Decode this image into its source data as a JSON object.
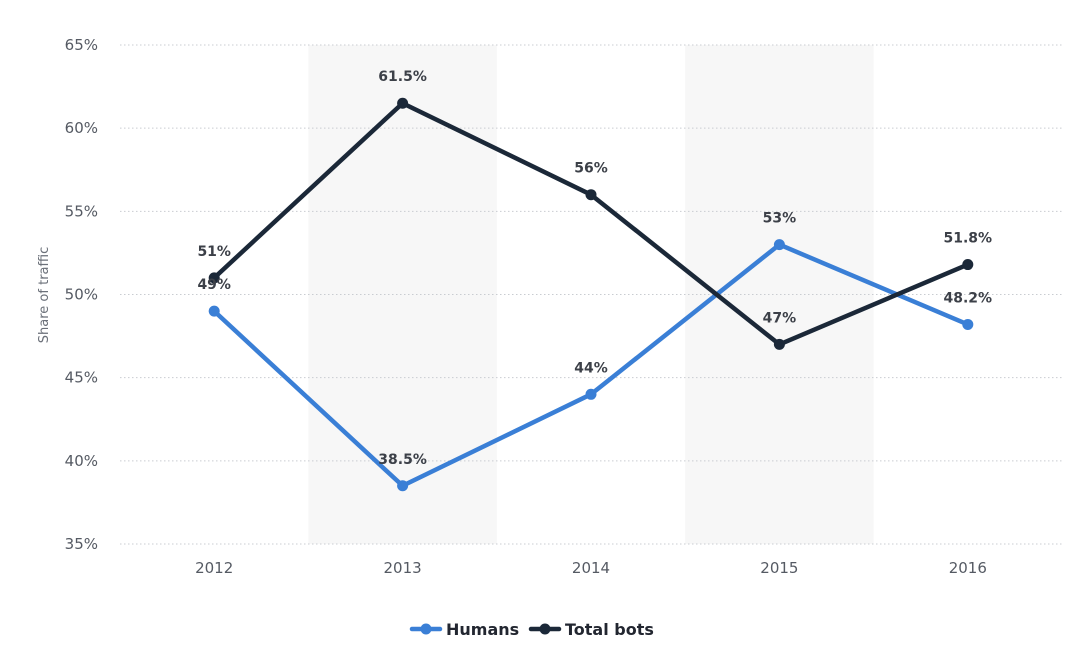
{
  "chart_data": {
    "type": "line",
    "categories": [
      "2012",
      "2013",
      "2014",
      "2015",
      "2016"
    ],
    "series": [
      {
        "name": "Humans",
        "values": [
          49,
          38.5,
          44,
          53,
          48.2
        ],
        "labels": [
          "49%",
          "38.5%",
          "44%",
          "53%",
          "48.2%"
        ],
        "color": "#3a7fd6"
      },
      {
        "name": "Total bots",
        "values": [
          51,
          61.5,
          56,
          47,
          51.8
        ],
        "labels": [
          "51%",
          "61.5%",
          "56%",
          "47%",
          "51.8%"
        ],
        "color": "#1b2838"
      }
    ],
    "ylabel": "Share of traffic",
    "xlabel": "",
    "ylim": [
      35,
      65
    ],
    "yticks": [
      "35%",
      "40%",
      "45%",
      "50%",
      "55%",
      "60%",
      "65%"
    ],
    "ytick_values": [
      35,
      40,
      45,
      50,
      55,
      60,
      65
    ],
    "grid": true,
    "legend_position": "bottom-center",
    "band_color": "#f7f7f7",
    "grid_color": "#c9ccd1"
  }
}
